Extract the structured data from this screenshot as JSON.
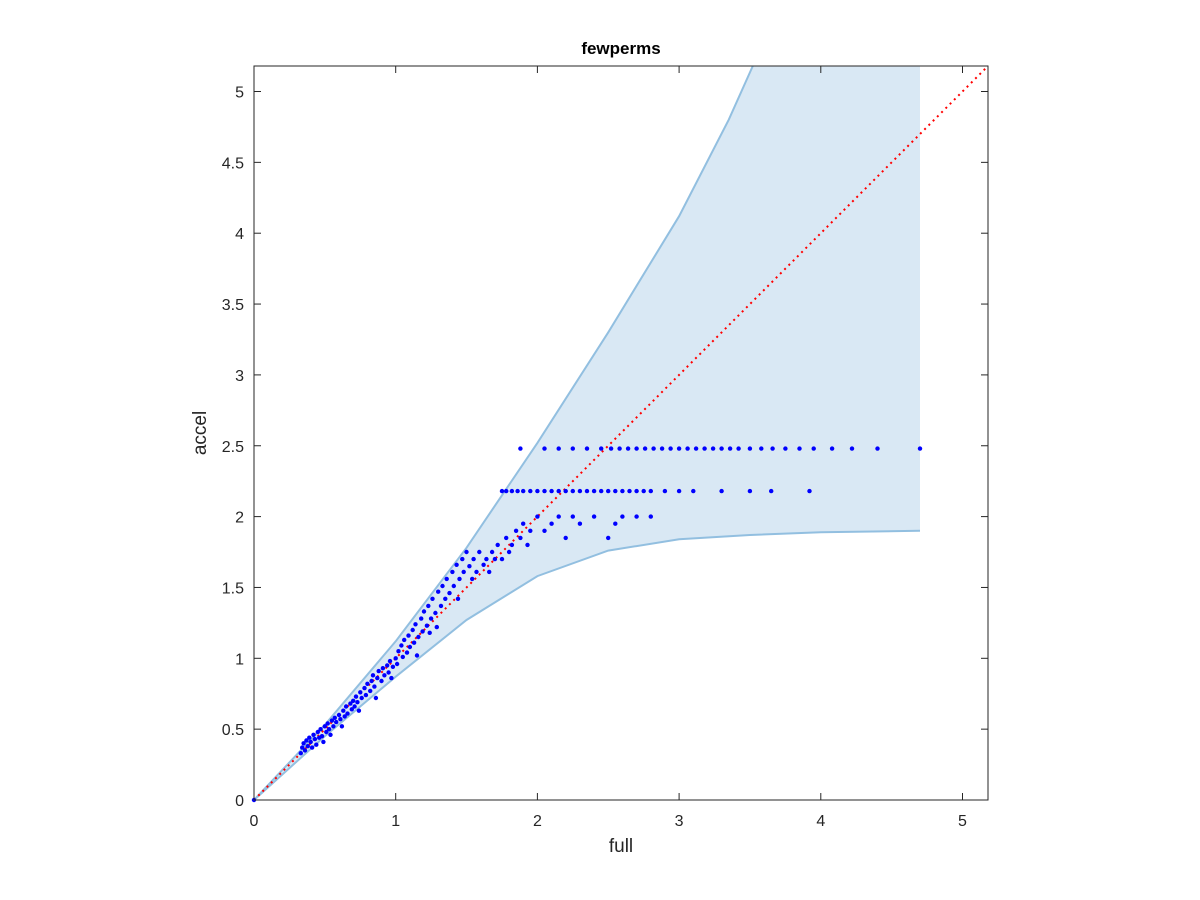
{
  "chart_data": {
    "type": "scatter",
    "title": "fewperms",
    "xlabel": "full",
    "ylabel": "accel",
    "xlim": [
      0,
      5.18
    ],
    "ylim": [
      0,
      5.18
    ],
    "xticks": [
      0,
      1,
      2,
      3,
      4,
      5
    ],
    "yticks": [
      0,
      0.5,
      1,
      1.5,
      2,
      2.5,
      3,
      3.5,
      4,
      4.5,
      5
    ],
    "xtick_labels": [
      "0",
      "1",
      "2",
      "3",
      "4",
      "5"
    ],
    "ytick_labels": [
      "0",
      "0.5",
      "1",
      "1.5",
      "2",
      "2.5",
      "3",
      "3.5",
      "4",
      "4.5",
      "5"
    ],
    "grid": false,
    "reference_line": {
      "style": "dotted",
      "color": "#ff0000",
      "from": [
        0,
        0
      ],
      "to": [
        5.18,
        5.18
      ]
    },
    "band": {
      "fill": "#d9e8f4",
      "stroke": "#92bfe0",
      "x_end": 4.7,
      "upper": [
        [
          0,
          0
        ],
        [
          0.5,
          0.53
        ],
        [
          1,
          1.12
        ],
        [
          1.5,
          1.78
        ],
        [
          2,
          2.52
        ],
        [
          2.5,
          3.3
        ],
        [
          3,
          4.12
        ],
        [
          3.35,
          4.8
        ],
        [
          3.52,
          5.18
        ]
      ],
      "lower": [
        [
          0,
          0
        ],
        [
          0.5,
          0.45
        ],
        [
          1,
          0.87
        ],
        [
          1.5,
          1.27
        ],
        [
          2,
          1.58
        ],
        [
          2.5,
          1.76
        ],
        [
          3,
          1.84
        ],
        [
          3.5,
          1.87
        ],
        [
          4,
          1.89
        ],
        [
          4.7,
          1.9
        ]
      ]
    },
    "series": [
      {
        "marker_color": "#0000ff",
        "points": [
          [
            0,
            0
          ],
          [
            0.33,
            0.33
          ],
          [
            0.34,
            0.37
          ],
          [
            0.35,
            0.4
          ],
          [
            0.36,
            0.35
          ],
          [
            0.37,
            0.42
          ],
          [
            0.38,
            0.38
          ],
          [
            0.39,
            0.44
          ],
          [
            0.4,
            0.41
          ],
          [
            0.41,
            0.37
          ],
          [
            0.42,
            0.46
          ],
          [
            0.43,
            0.43
          ],
          [
            0.44,
            0.39
          ],
          [
            0.45,
            0.48
          ],
          [
            0.46,
            0.44
          ],
          [
            0.47,
            0.5
          ],
          [
            0.48,
            0.45
          ],
          [
            0.49,
            0.41
          ],
          [
            0.5,
            0.52
          ],
          [
            0.51,
            0.48
          ],
          [
            0.52,
            0.54
          ],
          [
            0.53,
            0.5
          ],
          [
            0.54,
            0.46
          ],
          [
            0.55,
            0.56
          ],
          [
            0.56,
            0.52
          ],
          [
            0.57,
            0.58
          ],
          [
            0.58,
            0.55
          ],
          [
            0.6,
            0.6
          ],
          [
            0.61,
            0.57
          ],
          [
            0.62,
            0.52
          ],
          [
            0.63,
            0.63
          ],
          [
            0.64,
            0.59
          ],
          [
            0.65,
            0.66
          ],
          [
            0.66,
            0.61
          ],
          [
            0.68,
            0.68
          ],
          [
            0.69,
            0.64
          ],
          [
            0.7,
            0.7
          ],
          [
            0.71,
            0.66
          ],
          [
            0.72,
            0.73
          ],
          [
            0.73,
            0.69
          ],
          [
            0.74,
            0.63
          ],
          [
            0.75,
            0.76
          ],
          [
            0.76,
            0.72
          ],
          [
            0.78,
            0.79
          ],
          [
            0.79,
            0.74
          ],
          [
            0.8,
            0.82
          ],
          [
            0.82,
            0.77
          ],
          [
            0.83,
            0.84
          ],
          [
            0.84,
            0.88
          ],
          [
            0.85,
            0.8
          ],
          [
            0.86,
            0.72
          ],
          [
            0.87,
            0.86
          ],
          [
            0.88,
            0.91
          ],
          [
            0.9,
            0.84
          ],
          [
            0.91,
            0.93
          ],
          [
            0.92,
            0.88
          ],
          [
            0.94,
            0.95
          ],
          [
            0.95,
            0.9
          ],
          [
            0.96,
            0.98
          ],
          [
            0.97,
            0.86
          ],
          [
            0.98,
            0.94
          ],
          [
            1.0,
            1.0
          ],
          [
            1.01,
            0.96
          ],
          [
            1.02,
            1.05
          ],
          [
            1.04,
            1.09
          ],
          [
            1.05,
            1.01
          ],
          [
            1.06,
            1.13
          ],
          [
            1.08,
            1.04
          ],
          [
            1.09,
            1.16
          ],
          [
            1.1,
            1.08
          ],
          [
            1.12,
            1.2
          ],
          [
            1.13,
            1.11
          ],
          [
            1.14,
            1.24
          ],
          [
            1.15,
            1.02
          ],
          [
            1.16,
            1.15
          ],
          [
            1.18,
            1.28
          ],
          [
            1.19,
            1.19
          ],
          [
            1.2,
            1.33
          ],
          [
            1.22,
            1.23
          ],
          [
            1.23,
            1.37
          ],
          [
            1.24,
            1.18
          ],
          [
            1.25,
            1.28
          ],
          [
            1.26,
            1.42
          ],
          [
            1.28,
            1.32
          ],
          [
            1.29,
            1.22
          ],
          [
            1.3,
            1.47
          ],
          [
            1.32,
            1.37
          ],
          [
            1.33,
            1.51
          ],
          [
            1.35,
            1.42
          ],
          [
            1.36,
            1.56
          ],
          [
            1.38,
            1.46
          ],
          [
            1.4,
            1.61
          ],
          [
            1.41,
            1.51
          ],
          [
            1.43,
            1.66
          ],
          [
            1.44,
            1.42
          ],
          [
            1.45,
            1.56
          ],
          [
            1.47,
            1.7
          ],
          [
            1.48,
            1.61
          ],
          [
            1.5,
            1.75
          ],
          [
            1.52,
            1.65
          ],
          [
            1.54,
            1.56
          ],
          [
            1.55,
            1.7
          ],
          [
            1.57,
            1.61
          ],
          [
            1.59,
            1.75
          ],
          [
            1.62,
            1.66
          ],
          [
            1.64,
            1.7
          ],
          [
            1.66,
            1.61
          ],
          [
            1.68,
            1.75
          ],
          [
            1.7,
            1.7
          ],
          [
            1.72,
            1.8
          ],
          [
            1.75,
            1.7
          ],
          [
            1.78,
            1.85
          ],
          [
            1.8,
            1.75
          ],
          [
            1.82,
            1.8
          ],
          [
            1.85,
            1.9
          ],
          [
            1.88,
            1.85
          ],
          [
            1.9,
            1.95
          ],
          [
            1.93,
            1.8
          ],
          [
            1.95,
            1.9
          ],
          [
            2.0,
            2.0
          ],
          [
            2.05,
            1.9
          ],
          [
            2.1,
            1.95
          ],
          [
            2.15,
            2.0
          ],
          [
            2.2,
            1.85
          ],
          [
            2.25,
            2.0
          ],
          [
            2.3,
            1.95
          ],
          [
            2.4,
            2.0
          ],
          [
            2.5,
            1.85
          ],
          [
            2.55,
            1.95
          ],
          [
            2.6,
            2.0
          ],
          [
            2.7,
            2.0
          ],
          [
            2.8,
            2.0
          ],
          [
            1.75,
            2.18
          ],
          [
            1.78,
            2.18
          ],
          [
            1.82,
            2.18
          ],
          [
            1.86,
            2.18
          ],
          [
            1.9,
            2.18
          ],
          [
            1.95,
            2.18
          ],
          [
            2.0,
            2.18
          ],
          [
            2.05,
            2.18
          ],
          [
            2.1,
            2.18
          ],
          [
            2.15,
            2.18
          ],
          [
            2.2,
            2.18
          ],
          [
            2.25,
            2.18
          ],
          [
            2.3,
            2.18
          ],
          [
            2.35,
            2.18
          ],
          [
            2.4,
            2.18
          ],
          [
            2.45,
            2.18
          ],
          [
            2.5,
            2.18
          ],
          [
            2.55,
            2.18
          ],
          [
            2.6,
            2.18
          ],
          [
            2.65,
            2.18
          ],
          [
            2.7,
            2.18
          ],
          [
            2.75,
            2.18
          ],
          [
            2.8,
            2.18
          ],
          [
            2.9,
            2.18
          ],
          [
            3.0,
            2.18
          ],
          [
            3.1,
            2.18
          ],
          [
            3.3,
            2.18
          ],
          [
            3.5,
            2.18
          ],
          [
            3.65,
            2.18
          ],
          [
            3.92,
            2.18
          ],
          [
            1.88,
            2.48
          ],
          [
            2.05,
            2.48
          ],
          [
            2.15,
            2.48
          ],
          [
            2.25,
            2.48
          ],
          [
            2.35,
            2.48
          ],
          [
            2.45,
            2.48
          ],
          [
            2.52,
            2.48
          ],
          [
            2.58,
            2.48
          ],
          [
            2.64,
            2.48
          ],
          [
            2.7,
            2.48
          ],
          [
            2.76,
            2.48
          ],
          [
            2.82,
            2.48
          ],
          [
            2.88,
            2.48
          ],
          [
            2.94,
            2.48
          ],
          [
            3.0,
            2.48
          ],
          [
            3.06,
            2.48
          ],
          [
            3.12,
            2.48
          ],
          [
            3.18,
            2.48
          ],
          [
            3.24,
            2.48
          ],
          [
            3.3,
            2.48
          ],
          [
            3.36,
            2.48
          ],
          [
            3.42,
            2.48
          ],
          [
            3.5,
            2.48
          ],
          [
            3.58,
            2.48
          ],
          [
            3.66,
            2.48
          ],
          [
            3.75,
            2.48
          ],
          [
            3.85,
            2.48
          ],
          [
            3.95,
            2.48
          ],
          [
            4.08,
            2.48
          ],
          [
            4.22,
            2.48
          ],
          [
            4.4,
            2.48
          ],
          [
            4.7,
            2.48
          ]
        ]
      }
    ]
  }
}
